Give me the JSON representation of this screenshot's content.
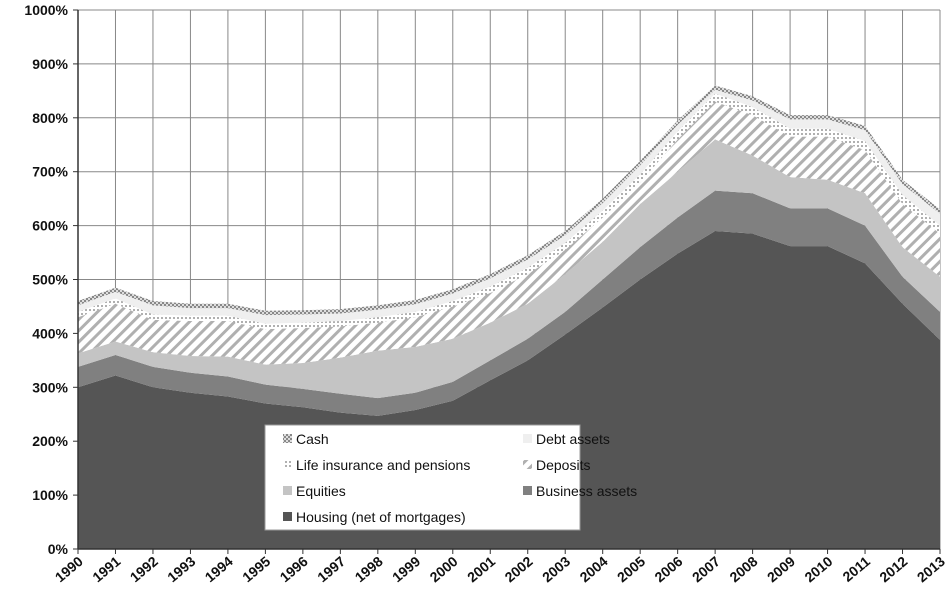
{
  "chart_data": {
    "type": "stacked-area",
    "categories": [
      "1990",
      "1991",
      "1992",
      "1993",
      "1994",
      "1995",
      "1996",
      "1997",
      "1998",
      "1999",
      "2000",
      "2001",
      "2002",
      "2003",
      "2004",
      "2005",
      "2006",
      "2007",
      "2008",
      "2009",
      "2010",
      "2011",
      "2012",
      "2013"
    ],
    "series": [
      {
        "name": "Housing (net of mortgages)",
        "color": "#555555",
        "pattern": "solid",
        "values": [
          300,
          322,
          300,
          290,
          283,
          270,
          263,
          253,
          247,
          258,
          275,
          313,
          350,
          398,
          448,
          500,
          548,
          590,
          585,
          562,
          562,
          530,
          455,
          388
        ]
      },
      {
        "name": "Business assets",
        "color": "#808080",
        "pattern": "solid",
        "values": [
          38,
          38,
          38,
          37,
          37,
          35,
          34,
          35,
          33,
          32,
          35,
          37,
          40,
          42,
          52,
          60,
          67,
          75,
          75,
          70,
          70,
          70,
          50,
          52
        ]
      },
      {
        "name": "Equities",
        "color": "#c4c4c4",
        "pattern": "solid",
        "values": [
          25,
          25,
          27,
          31,
          37,
          37,
          48,
          67,
          88,
          85,
          80,
          70,
          65,
          70,
          70,
          80,
          85,
          95,
          70,
          58,
          53,
          60,
          55,
          65
        ]
      },
      {
        "name": "Deposits",
        "color": "#b0b0b0",
        "pattern": "diagonal",
        "values": [
          67,
          70,
          60,
          65,
          66,
          66,
          65,
          58,
          52,
          55,
          60,
          55,
          55,
          45,
          45,
          40,
          60,
          70,
          75,
          75,
          80,
          80,
          80,
          80
        ]
      },
      {
        "name": "Life insurance and pensions",
        "color": "#999999",
        "pattern": "dots",
        "values": [
          10,
          10,
          10,
          10,
          10,
          10,
          10,
          10,
          10,
          10,
          10,
          12,
          12,
          13,
          13,
          15,
          15,
          15,
          15,
          15,
          15,
          17,
          17,
          15
        ]
      },
      {
        "name": "Debt assets",
        "color": "#efefef",
        "pattern": "solid",
        "values": [
          12,
          12,
          17,
          14,
          14,
          16,
          15,
          14,
          14,
          14,
          14,
          15,
          15,
          14,
          14,
          17,
          12,
          7,
          12,
          17,
          17,
          20,
          20,
          22
        ]
      },
      {
        "name": "Cash",
        "color": "#9a9a9a",
        "pattern": "checker",
        "values": [
          8,
          8,
          8,
          8,
          8,
          8,
          8,
          8,
          8,
          8,
          8,
          8,
          8,
          8,
          8,
          8,
          8,
          8,
          8,
          8,
          8,
          8,
          8,
          8
        ]
      }
    ],
    "ylim": [
      0,
      1000
    ],
    "yticks": [
      {
        "value": 0,
        "label": "0%"
      },
      {
        "value": 100,
        "label": "100%"
      },
      {
        "value": 200,
        "label": "200%"
      },
      {
        "value": 300,
        "label": "300%"
      },
      {
        "value": 400,
        "label": "400%"
      },
      {
        "value": 500,
        "label": "500%"
      },
      {
        "value": 600,
        "label": "600%"
      },
      {
        "value": 700,
        "label": "700%"
      },
      {
        "value": 800,
        "label": "800%"
      },
      {
        "value": 900,
        "label": "900%"
      },
      {
        "value": 1000,
        "label": "1000%"
      }
    ],
    "grid": true
  }
}
